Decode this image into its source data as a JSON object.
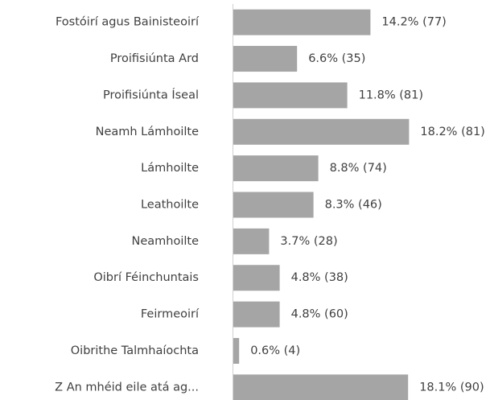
{
  "chart_data": {
    "type": "bar",
    "orientation": "horizontal",
    "categories": [
      "Fostóirí agus Bainisteoirí",
      "Proifisiúnta Ard",
      "Proifisiúnta Íseal",
      "Neamh Lámhoilte",
      "Lámhoilte",
      "Leathoilte",
      "Neamhoilte",
      "Oibrí Féinchuntais",
      "Feirmeoirí",
      "Oibrithe Talmhaíochta",
      "Z An mhéid eile atá ag..."
    ],
    "values": [
      14.2,
      6.6,
      11.8,
      18.2,
      8.8,
      8.3,
      3.7,
      4.8,
      4.8,
      0.6,
      18.1
    ],
    "value_labels": [
      "14.2% (77)",
      "6.6% (35)",
      "11.8% (81)",
      "18.2% (81)",
      "8.8% (74)",
      "8.3% (46)",
      "3.7% (28)",
      "4.8% (38)",
      "4.8% (60)",
      "0.6% (4)",
      "18.1% (90)"
    ],
    "color": "#a5a5a5",
    "xlim": [
      0,
      25
    ]
  }
}
